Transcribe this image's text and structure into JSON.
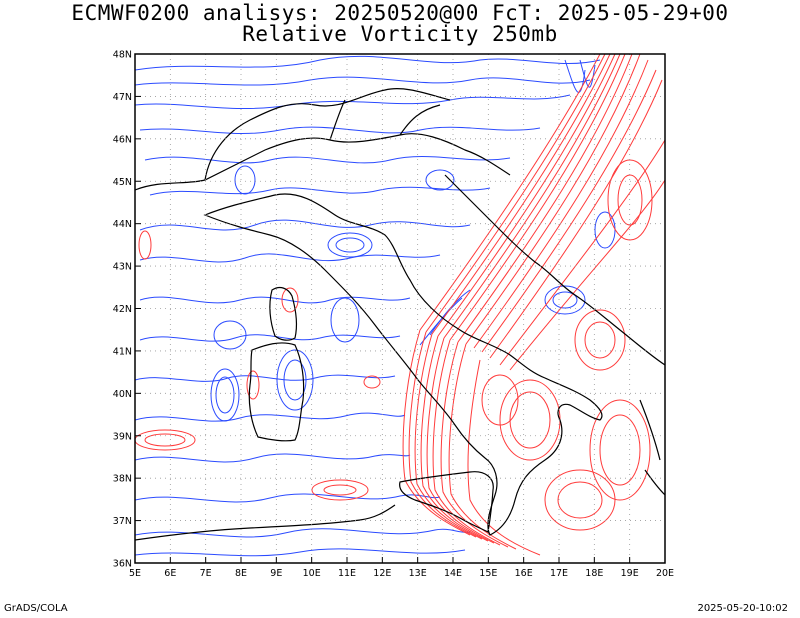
{
  "title": {
    "line1": "ECMWF0200 analisys: 20250520@00 FcT: 2025-05-29+00",
    "line2": "Relative Vorticity 250mb"
  },
  "footer": {
    "left": "GrADS/COLA",
    "right": "2025-05-20-10:02"
  },
  "map": {
    "lon_range": [
      5,
      20
    ],
    "lat_range": [
      36,
      48
    ],
    "lon_ticks": [
      "5E",
      "6E",
      "7E",
      "8E",
      "9E",
      "10E",
      "11E",
      "12E",
      "13E",
      "14E",
      "15E",
      "16E",
      "17E",
      "18E",
      "19E",
      "20E"
    ],
    "lat_ticks": [
      "36N",
      "37N",
      "38N",
      "39N",
      "40N",
      "41N",
      "42N",
      "43N",
      "44N",
      "45N",
      "46N",
      "47N",
      "48N"
    ],
    "grid": true,
    "colors": {
      "negative_vorticity": "#2b4bff",
      "positive_vorticity": "#ff3b3b",
      "coastline": "#000000",
      "grid": "#999999",
      "frame": "#000000"
    }
  }
}
